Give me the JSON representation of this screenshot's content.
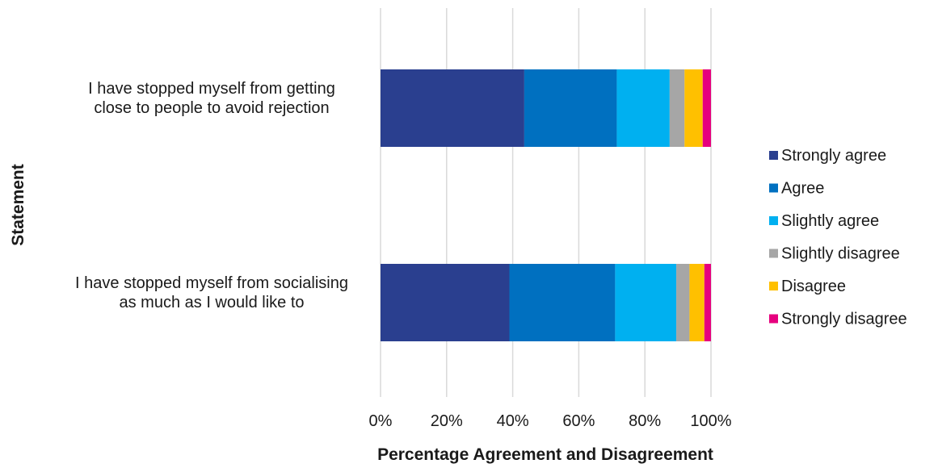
{
  "chart_data": {
    "type": "bar",
    "orientation": "horizontal",
    "stacked": true,
    "categories": [
      [
        "I have stopped myself from getting",
        "close to people to avoid rejection"
      ],
      [
        "I have stopped myself from socialising",
        "as much as I would like to"
      ]
    ],
    "series": [
      {
        "name": "Strongly agree",
        "color": "#2a3f8f",
        "values": [
          43.5,
          39
        ]
      },
      {
        "name": "Agree",
        "color": "#0070c0",
        "values": [
          28,
          32
        ]
      },
      {
        "name": "Slightly agree",
        "color": "#00b0f0",
        "values": [
          16,
          18.5
        ]
      },
      {
        "name": "Slightly disagree",
        "color": "#a6a6a6",
        "values": [
          4.5,
          4
        ]
      },
      {
        "name": "Disagree",
        "color": "#ffc000",
        "values": [
          5.5,
          4.5
        ]
      },
      {
        "name": "Strongly disagree",
        "color": "#e6007e",
        "values": [
          2.5,
          2
        ]
      }
    ],
    "xlim": [
      0,
      100
    ],
    "xticks": [
      "0%",
      "20%",
      "40%",
      "60%",
      "80%",
      "100%"
    ],
    "xlabel": "Percentage Agreement and Disagreement",
    "ylabel": "Statement",
    "grid": "vertical",
    "legend": "right"
  }
}
